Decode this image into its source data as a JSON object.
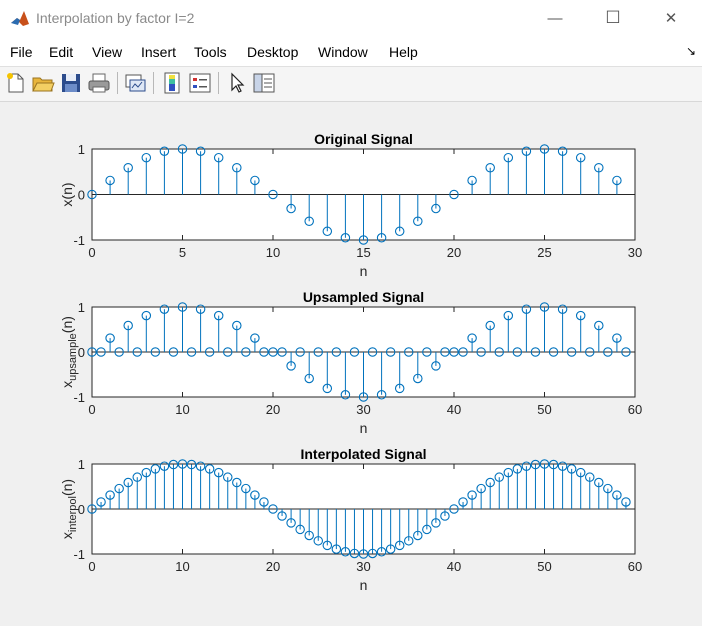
{
  "window": {
    "title": "Interpolation by factor I=2",
    "buttons": {
      "minimize": "—",
      "maximize": "☐",
      "close": "✕"
    }
  },
  "menu": {
    "items": [
      "File",
      "Edit",
      "View",
      "Insert",
      "Tools",
      "Desktop",
      "Window",
      "Help"
    ],
    "dock_arrow": "↘"
  },
  "toolbar": {
    "icons": [
      "new-figure-icon",
      "open-file-icon",
      "save-icon",
      "print-icon",
      "link-plot-icon",
      "insert-colorbar-icon",
      "insert-legend-icon",
      "edit-plot-arrow-icon",
      "property-inspector-icon"
    ]
  },
  "colors": {
    "stem": "#0072bd",
    "axes_bg": "#ffffff",
    "figure_bg": "#f0f0f0"
  },
  "chart_data": [
    {
      "type": "stem",
      "title": "Original Signal",
      "xlabel": "n",
      "ylabel": "x(n)",
      "xlim": [
        0,
        30
      ],
      "ylim": [
        -1,
        1
      ],
      "xticks": [
        "0",
        "5",
        "10",
        "15",
        "20",
        "25",
        "30"
      ],
      "yticks": [
        "1",
        "0",
        "-1"
      ],
      "x": [
        0,
        1,
        2,
        3,
        4,
        5,
        6,
        7,
        8,
        9,
        10,
        11,
        12,
        13,
        14,
        15,
        16,
        17,
        18,
        19,
        20,
        21,
        22,
        23,
        24,
        25,
        26,
        27,
        28,
        29
      ],
      "y": [
        0,
        0.309,
        0.588,
        0.809,
        0.951,
        1,
        0.951,
        0.809,
        0.588,
        0.309,
        0,
        -0.309,
        -0.588,
        -0.809,
        -0.951,
        -1,
        -0.951,
        -0.809,
        -0.588,
        -0.309,
        0,
        0.309,
        0.588,
        0.809,
        0.951,
        1,
        0.951,
        0.809,
        0.588,
        0.309
      ]
    },
    {
      "type": "stem",
      "title": "Upsampled Signal",
      "xlabel": "n",
      "ylabel": "x",
      "ylabel_sub": "upsample",
      "ylabel_suffix": "(n)",
      "xlim": [
        0,
        60
      ],
      "ylim": [
        -1,
        1
      ],
      "xticks": [
        "0",
        "10",
        "20",
        "30",
        "40",
        "50",
        "60"
      ],
      "yticks": [
        "1",
        "0",
        "-1"
      ],
      "x": [
        0,
        1,
        2,
        3,
        4,
        5,
        6,
        7,
        8,
        9,
        10,
        11,
        12,
        13,
        14,
        15,
        16,
        17,
        18,
        19,
        20,
        21,
        22,
        23,
        24,
        25,
        26,
        27,
        28,
        29,
        30,
        31,
        32,
        33,
        34,
        35,
        36,
        37,
        38,
        39,
        40,
        41,
        42,
        43,
        44,
        45,
        46,
        47,
        48,
        49,
        50,
        51,
        52,
        53,
        54,
        55,
        56,
        57,
        58,
        59
      ],
      "y": [
        0,
        0,
        0.309,
        0,
        0.588,
        0,
        0.809,
        0,
        0.951,
        0,
        1,
        0,
        0.951,
        0,
        0.809,
        0,
        0.588,
        0,
        0.309,
        0,
        0,
        0,
        -0.309,
        0,
        -0.588,
        0,
        -0.809,
        0,
        -0.951,
        0,
        -1,
        0,
        -0.951,
        0,
        -0.809,
        0,
        -0.588,
        0,
        -0.309,
        0,
        0,
        0,
        0.309,
        0,
        0.588,
        0,
        0.809,
        0,
        0.951,
        0,
        1,
        0,
        0.951,
        0,
        0.809,
        0,
        0.588,
        0,
        0.309,
        0
      ]
    },
    {
      "type": "stem",
      "title": "Interpolated Signal",
      "xlabel": "n",
      "ylabel": "x",
      "ylabel_sub": "interpol",
      "ylabel_suffix": "(n)",
      "xlim": [
        0,
        60
      ],
      "ylim": [
        -1,
        1
      ],
      "xticks": [
        "0",
        "10",
        "20",
        "30",
        "40",
        "50",
        "60"
      ],
      "yticks": [
        "1",
        "0",
        "-1"
      ],
      "x": [
        0,
        1,
        2,
        3,
        4,
        5,
        6,
        7,
        8,
        9,
        10,
        11,
        12,
        13,
        14,
        15,
        16,
        17,
        18,
        19,
        20,
        21,
        22,
        23,
        24,
        25,
        26,
        27,
        28,
        29,
        30,
        31,
        32,
        33,
        34,
        35,
        36,
        37,
        38,
        39,
        40,
        41,
        42,
        43,
        44,
        45,
        46,
        47,
        48,
        49,
        50,
        51,
        52,
        53,
        54,
        55,
        56,
        57,
        58,
        59
      ],
      "y": [
        0,
        0.156,
        0.309,
        0.454,
        0.588,
        0.707,
        0.809,
        0.891,
        0.951,
        0.988,
        1,
        0.988,
        0.951,
        0.891,
        0.809,
        0.707,
        0.588,
        0.454,
        0.309,
        0.156,
        0,
        -0.156,
        -0.309,
        -0.454,
        -0.588,
        -0.707,
        -0.809,
        -0.891,
        -0.951,
        -0.988,
        -1,
        -0.988,
        -0.951,
        -0.891,
        -0.809,
        -0.707,
        -0.588,
        -0.454,
        -0.309,
        -0.156,
        0,
        0.156,
        0.309,
        0.454,
        0.588,
        0.707,
        0.809,
        0.891,
        0.951,
        0.988,
        1,
        0.988,
        0.951,
        0.891,
        0.809,
        0.707,
        0.588,
        0.454,
        0.309,
        0.156
      ]
    }
  ]
}
